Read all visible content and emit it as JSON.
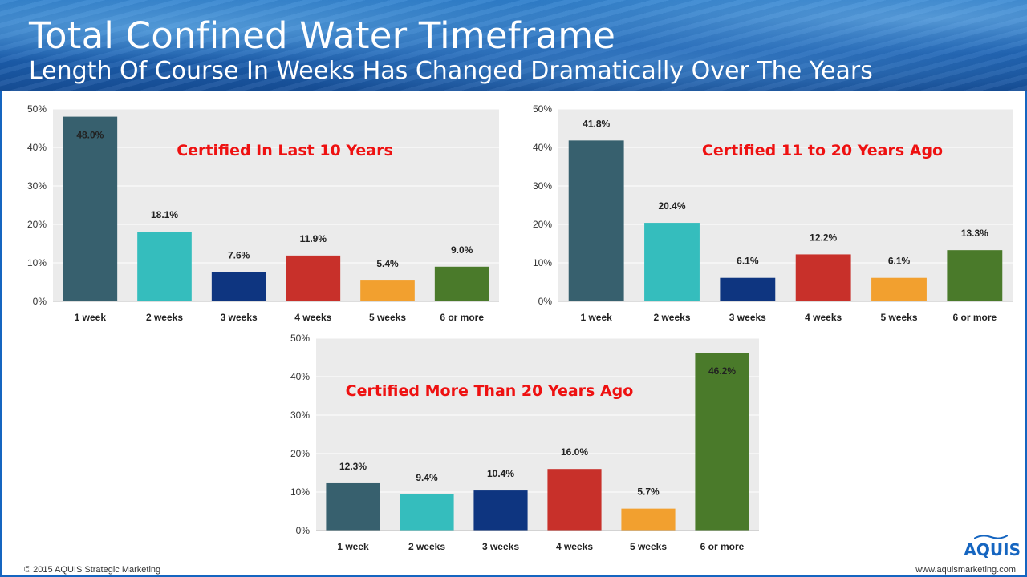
{
  "header": {
    "title": "Total Confined Water Timeframe",
    "subtitle": "Length Of Course In Weeks Has Changed Dramatically Over The Years"
  },
  "colors": [
    "#37606e",
    "#35bdbd",
    "#0e3580",
    "#c8302a",
    "#f2a02f",
    "#4a7a2a"
  ],
  "chart_data": [
    {
      "type": "bar",
      "title": "Certified In Last 10 Years",
      "categories": [
        "1 week",
        "2 weeks",
        "3 weeks",
        "4 weeks",
        "5 weeks",
        "6 or more"
      ],
      "values": [
        48.0,
        18.1,
        7.6,
        11.9,
        5.4,
        9.0
      ],
      "data_labels": [
        "48.0%",
        "18.1%",
        "7.6%",
        "11.9%",
        "5.4%",
        "9.0%"
      ],
      "yticks": [
        "0%",
        "10%",
        "20%",
        "30%",
        "40%",
        "50%"
      ],
      "ylim": [
        0,
        50
      ],
      "xlabel": "",
      "ylabel": "",
      "grid": true
    },
    {
      "type": "bar",
      "title": "Certified 11 to 20 Years Ago",
      "categories": [
        "1 week",
        "2 weeks",
        "3 weeks",
        "4 weeks",
        "5 weeks",
        "6 or more"
      ],
      "values": [
        41.8,
        20.4,
        6.1,
        12.2,
        6.1,
        13.3
      ],
      "data_labels": [
        "41.8%",
        "20.4%",
        "6.1%",
        "12.2%",
        "6.1%",
        "13.3%"
      ],
      "yticks": [
        "0%",
        "10%",
        "20%",
        "30%",
        "40%",
        "50%"
      ],
      "ylim": [
        0,
        50
      ],
      "xlabel": "",
      "ylabel": "",
      "grid": true
    },
    {
      "type": "bar",
      "title": "Certified More Than 20 Years Ago",
      "categories": [
        "1 week",
        "2 weeks",
        "3 weeks",
        "4 weeks",
        "5 weeks",
        "6 or more"
      ],
      "values": [
        12.3,
        9.4,
        10.4,
        16.0,
        5.7,
        46.2
      ],
      "data_labels": [
        "12.3%",
        "9.4%",
        "10.4%",
        "16.0%",
        "5.7%",
        "46.2%"
      ],
      "yticks": [
        "0%",
        "10%",
        "20%",
        "30%",
        "40%",
        "50%"
      ],
      "ylim": [
        0,
        50
      ],
      "xlabel": "",
      "ylabel": "",
      "grid": true
    }
  ],
  "footer": {
    "copyright": "© 2015 AQUIS Strategic Marketing",
    "website": "www.aquismarketing.com",
    "logo": "AQUIS"
  }
}
